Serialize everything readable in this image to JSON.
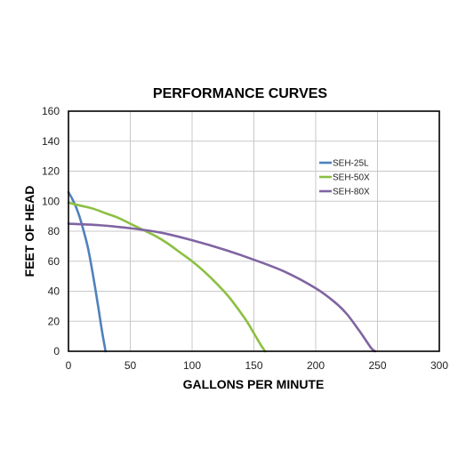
{
  "chart_data": {
    "type": "line",
    "title": "PERFORMANCE CURVES",
    "xlabel": "GALLONS PER MINUTE",
    "ylabel": "FEET OF HEAD",
    "xlim": [
      0,
      300
    ],
    "ylim": [
      0,
      160
    ],
    "xticks": [
      0,
      50,
      100,
      150,
      200,
      250,
      300
    ],
    "yticks": [
      0,
      20,
      40,
      60,
      80,
      100,
      120,
      140,
      160
    ],
    "grid": true,
    "legend_position": "right",
    "series": [
      {
        "name": "SEH-25L",
        "color": "#4f81bd",
        "x": [
          0,
          4,
          8,
          12,
          16,
          20,
          24,
          27,
          30
        ],
        "y": [
          106,
          100,
          92,
          81,
          68,
          50,
          30,
          14,
          0
        ]
      },
      {
        "name": "SEH-50X",
        "color": "#8cbf42",
        "x": [
          0,
          10,
          20,
          30,
          40,
          50,
          60,
          70,
          80,
          90,
          100,
          110,
          120,
          130,
          140,
          145,
          150,
          155,
          159
        ],
        "y": [
          99,
          97,
          95,
          92,
          89,
          85,
          81,
          77,
          72,
          66,
          60,
          53,
          45,
          36,
          25,
          19,
          12,
          5,
          0
        ]
      },
      {
        "name": "SEH-80X",
        "color": "#8064a2",
        "x": [
          0,
          25,
          50,
          75,
          100,
          125,
          150,
          175,
          200,
          215,
          225,
          235,
          240,
          245,
          248
        ],
        "y": [
          85,
          84,
          82,
          79,
          74,
          68,
          61,
          53,
          42,
          33,
          25,
          14,
          8,
          2,
          0
        ]
      }
    ]
  }
}
